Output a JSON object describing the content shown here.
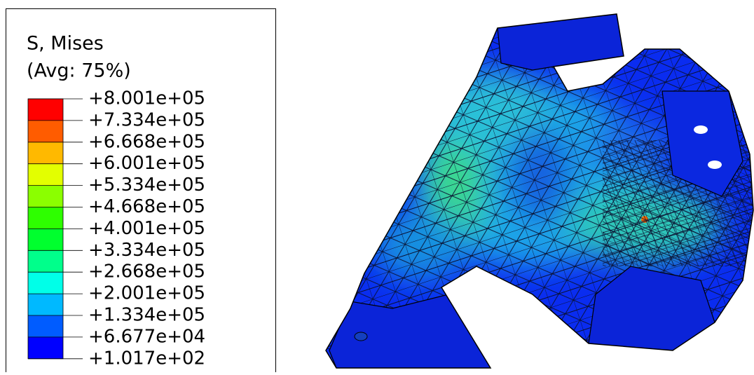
{
  "legend": {
    "title": [
      "S, Mises",
      "(Avg: 75%)"
    ],
    "labels": [
      "+8.001e+05",
      "+7.334e+05",
      "+6.668e+05",
      "+6.001e+05",
      "+5.334e+05",
      "+4.668e+05",
      "+4.001e+05",
      "+3.334e+05",
      "+2.668e+05",
      "+2.001e+05",
      "+1.334e+05",
      "+6.677e+04",
      "+1.017e+02"
    ],
    "colors": [
      "#ff0000",
      "#ff5c00",
      "#ffb900",
      "#e3ff00",
      "#8bff00",
      "#2eff00",
      "#00ff2e",
      "#00ff8b",
      "#00ffe8",
      "#00b9ff",
      "#005cff",
      "#0000ff"
    ]
  }
}
